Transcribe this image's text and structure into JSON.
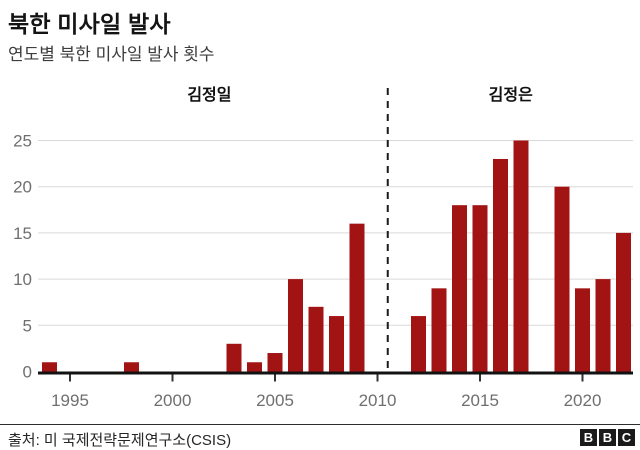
{
  "header": {
    "title": "북한 미사일 발사",
    "subtitle": "연도별 북한 미사일 발사 횟수"
  },
  "chart_data": {
    "type": "bar",
    "title": "북한 미사일 발사",
    "subtitle": "연도별 북한 미사일 발사 횟수",
    "x": [
      1994,
      1995,
      1996,
      1997,
      1998,
      1999,
      2000,
      2001,
      2002,
      2003,
      2004,
      2005,
      2006,
      2007,
      2008,
      2009,
      2010,
      2011,
      2012,
      2013,
      2014,
      2015,
      2016,
      2017,
      2018,
      2019,
      2020,
      2021,
      2022
    ],
    "values": [
      1,
      0,
      0,
      0,
      1,
      0,
      0,
      0,
      0,
      3,
      1,
      2,
      10,
      7,
      6,
      16,
      0,
      0,
      6,
      9,
      18,
      18,
      23,
      25,
      0,
      20,
      9,
      10,
      15
    ],
    "xlabel": "",
    "ylabel": "",
    "ylim": [
      0,
      25
    ],
    "yticks": [
      0,
      5,
      10,
      15,
      20,
      25
    ],
    "xticks": [
      1995,
      2000,
      2005,
      2010,
      2015,
      2020
    ],
    "grid": true,
    "legend_position": "none",
    "bar_color": "#a21313",
    "era_divider_year": 2010.5,
    "era_labels": [
      {
        "label": "김정일",
        "year_center": 2001.8
      },
      {
        "label": "김정은",
        "year_center": 2016.5
      }
    ]
  },
  "footer": {
    "source": "출처: 미 국제전략문제연구소(CSIS)",
    "logo_letters": [
      "B",
      "B",
      "C"
    ]
  }
}
